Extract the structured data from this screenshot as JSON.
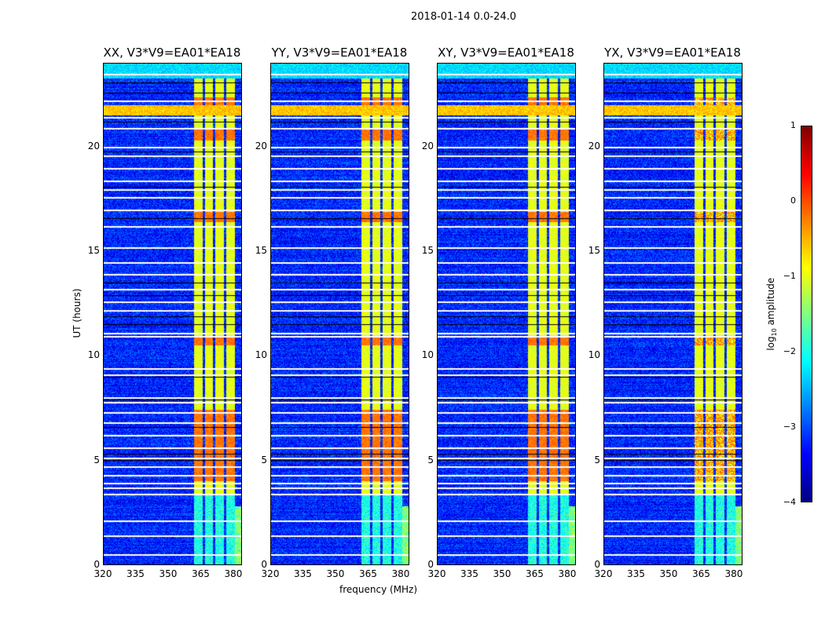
{
  "chart_data": {
    "type": "heatmap",
    "title": "2018-01-14 0.0-24.0",
    "panels": [
      {
        "title": "XX, V3*V9=EA01*EA18"
      },
      {
        "title": "YY, V3*V9=EA01*EA18"
      },
      {
        "title": "XY, V3*V9=EA01*EA18"
      },
      {
        "title": "YX, V3*V9=EA01*EA18"
      }
    ],
    "xlabel": "frequency (MHz)",
    "ylabel": "UT (hours)",
    "xlim": [
      320,
      384
    ],
    "ylim": [
      0,
      24
    ],
    "xticks": [
      "320",
      "335",
      "350",
      "365",
      "380"
    ],
    "xtick_values": [
      320,
      335,
      350,
      365,
      380
    ],
    "yticks": [
      "0",
      "5",
      "10",
      "15",
      "20"
    ],
    "ytick_values": [
      0,
      5,
      10,
      15,
      20
    ],
    "colorbar": {
      "label": "log",
      "label_sub": "10",
      "label_suffix": " amplitude",
      "range": [
        -4,
        1
      ],
      "ticks": [
        "1",
        "0",
        "−1",
        "−2",
        "−3",
        "−4"
      ],
      "tick_values": [
        1,
        0,
        -1,
        -2,
        -3,
        -4
      ],
      "colormap": "jet"
    },
    "background_level": -3.2,
    "rfi_channels_mhz": [
      364,
      369,
      374,
      379
    ],
    "rfi_channel_width_mhz": 4,
    "rfi_level": -1.0,
    "rfi_time_range_hours": [
      3.4,
      23.5
    ],
    "rfi_bright_ranges_hours": [
      [
        20.3,
        20.9
      ],
      [
        21.9,
        22.4
      ],
      [
        16.4,
        16.9
      ],
      [
        10.5,
        10.9
      ],
      [
        4.0,
        7.4
      ]
    ],
    "broadband_rfi_hours": [
      21.5,
      22.0
    ],
    "flagged_times_hours": [
      23.5,
      22.25,
      21.45,
      20.9,
      20.0,
      19.6,
      19.0,
      18.4,
      18.0,
      17.6,
      17.0,
      16.2,
      15.2,
      14.5,
      13.9,
      13.2,
      12.6,
      12.2,
      11.1,
      10.95,
      9.4,
      9.1,
      8.0,
      7.8,
      7.3,
      6.8,
      6.2,
      5.6,
      5.1,
      4.7,
      4.3,
      3.9,
      3.7,
      3.4,
      2.1,
      1.4,
      0.5
    ],
    "dark_times_hours": [
      23.1,
      22.6,
      21.2,
      19.8,
      18.1,
      16.6,
      13.5,
      12.9,
      11.9,
      11.5,
      9.0,
      7.9,
      6.6,
      5.3,
      5.0
    ]
  }
}
